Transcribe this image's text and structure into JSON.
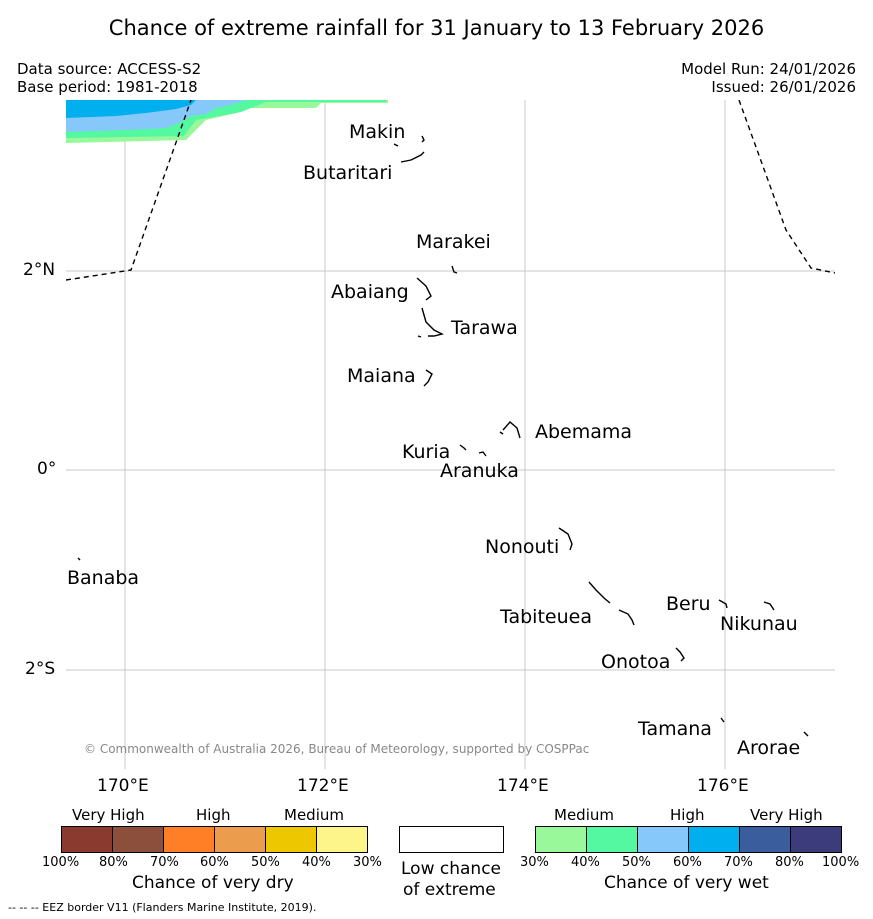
{
  "title": "Chance of extreme rainfall for 31 January to 13 February 2026",
  "data_source": "Data source: ACCESS-S2",
  "base_period": "Base period: 1981-2018",
  "model_run": "Model Run: 24/01/2026",
  "issued": "Issued: 26/01/2026",
  "copyright": "© Commonwealth of Australia 2026, Bureau of Meteorology, supported by COSPPac",
  "lon_ticks": [
    "170°E",
    "172°E",
    "174°E",
    "176°E"
  ],
  "lat_ticks": [
    "2°N",
    "0°",
    "2°S"
  ],
  "islands": [
    "Makin",
    "Butaritari",
    "Marakei",
    "Abaiang",
    "Tarawa",
    "Maiana",
    "Abemama",
    "Kuria",
    "Aranuka",
    "Nonouti",
    "Banaba",
    "Tabiteuea",
    "Beru",
    "Nikunau",
    "Onotoa",
    "Tamana",
    "Arorae"
  ],
  "dry_legend": {
    "categories": [
      "Very High",
      "High",
      "Medium"
    ],
    "ticks": [
      "100%",
      "80%",
      "70%",
      "60%",
      "50%",
      "40%",
      "30%"
    ],
    "colors": [
      "#8b3a2f",
      "#8b4f3c",
      "#ff7f27",
      "#eb9d4d",
      "#edc700",
      "#fdf58a"
    ],
    "label": "Chance of very dry"
  },
  "low_legend": {
    "label_line1": "Low chance",
    "label_line2": "of extreme"
  },
  "wet_legend": {
    "categories": [
      "Medium",
      "High",
      "Very High"
    ],
    "ticks": [
      "30%",
      "40%",
      "50%",
      "60%",
      "70%",
      "80%",
      "100%"
    ],
    "colors": [
      "#99f899",
      "#54f8a0",
      "#86c8fa",
      "#00b0ee",
      "#3a5d9d",
      "#3c3c7c"
    ],
    "label": "Chance of very wet"
  },
  "footer": "--  --  -- EEZ border V11 (Flanders Marine Institute, 2019)."
}
